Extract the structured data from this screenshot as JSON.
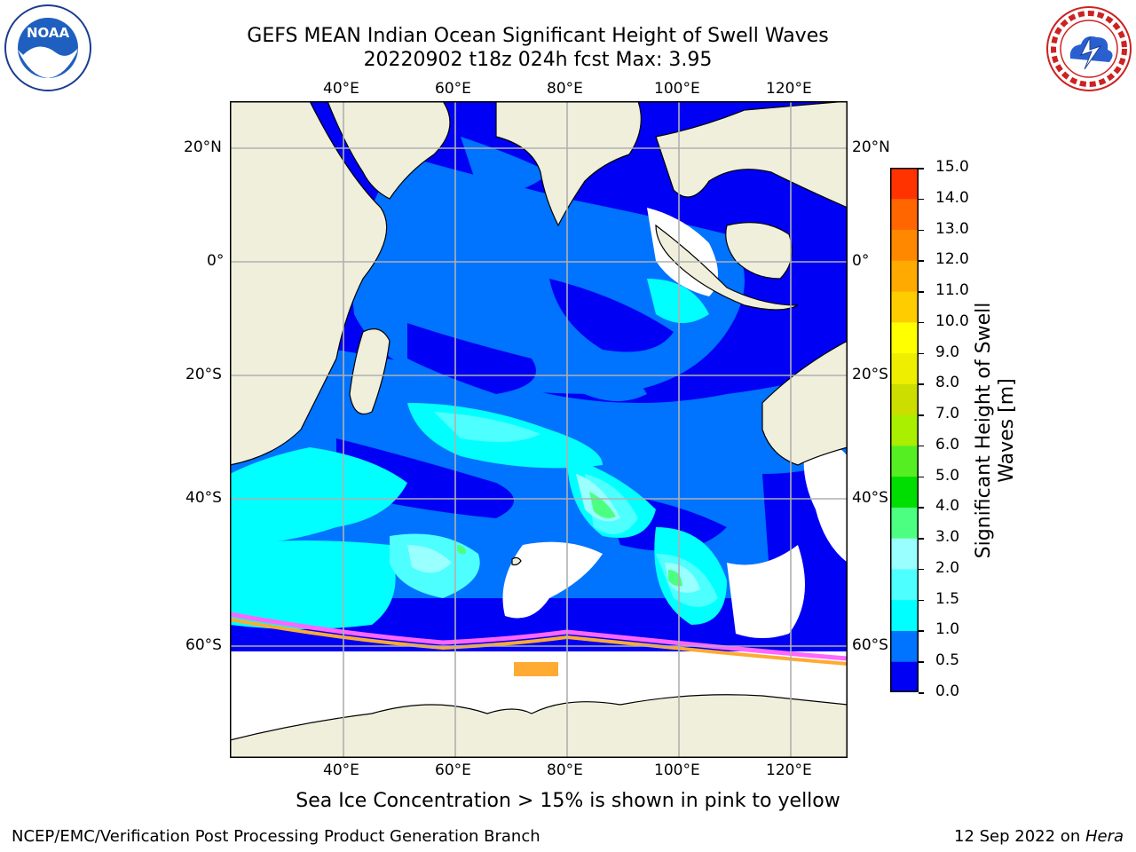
{
  "title": {
    "line1": "GEFS MEAN Indian Ocean Significant Height of Swell Waves",
    "line2": "20220902 t18z 024h fcst   Max: 3.95"
  },
  "logos": {
    "left": "NOAA",
    "left_ring": "NATIONAL OCEANIC AND ATMOSPHERIC ADMINISTRATION · U.S. DEPARTMENT OF COMMERCE",
    "right_ring": "NATIONAL WEATHER SERVICE"
  },
  "axes": {
    "lon_labels": [
      "40°E",
      "60°E",
      "80°E",
      "100°E",
      "120°E"
    ],
    "lat_labels": [
      "20°N",
      "0°",
      "20°S",
      "40°S",
      "60°S"
    ]
  },
  "colorbar": {
    "label_line1": "Significant Height of Swell",
    "label_line2": "Waves [m]",
    "ticks": [
      "15.0",
      "14.0",
      "13.0",
      "12.0",
      "11.0",
      "10.0",
      "9.0",
      "8.0",
      "7.0",
      "6.0",
      "5.0",
      "4.0",
      "3.0",
      "2.0",
      "1.5",
      "1.0",
      "0.5",
      "0.0"
    ],
    "colors": [
      "#0000f5",
      "#0073ff",
      "#00ffff",
      "#4dffff",
      "#99ffff",
      "#4dff80",
      "#00dd00",
      "#55ee22",
      "#aaee00",
      "#ccdd00",
      "#eeee00",
      "#ffff00",
      "#ffcc00",
      "#ffaa00",
      "#ff8800",
      "#ff6600",
      "#ff3300",
      "#ff0000"
    ]
  },
  "note": "Sea Ice Concentration > 15% is shown in pink to yellow",
  "footer": {
    "left": "NCEP/EMC/Verification Post Processing Product Generation Branch",
    "right_prefix": "12 Sep 2022 on ",
    "right_host": "Hera"
  }
}
